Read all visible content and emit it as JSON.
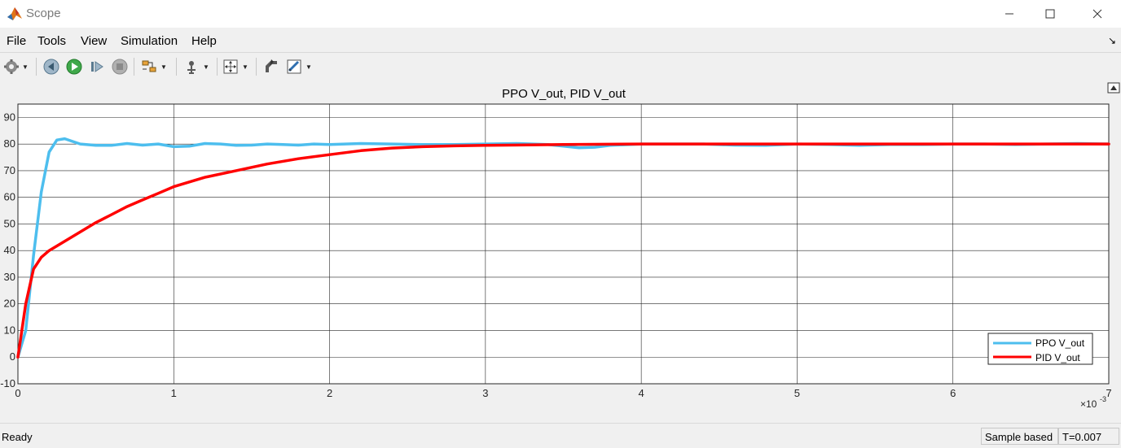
{
  "window": {
    "title": "Scope"
  },
  "menu": {
    "items": [
      "File",
      "Tools",
      "View",
      "Simulation",
      "Help"
    ]
  },
  "toolbar": {
    "buttons": [
      "settings-icon",
      "step-back-icon",
      "run-icon",
      "step-forward-icon",
      "stop-icon",
      "signal-select-icon",
      "cursor-measure-icon",
      "zoom-fit-icon",
      "highlight-block-icon",
      "tuning-icon"
    ]
  },
  "status": {
    "state": "Ready",
    "mode": "Sample based",
    "time": "T=0.007"
  },
  "colors": {
    "ppo": "#4DBEEE",
    "pid": "#FF0000",
    "axes_bg": "#ffffff"
  },
  "chart_data": {
    "type": "line",
    "title": "PPO V_out, PID V_out",
    "xlabel": "",
    "ylabel": "",
    "x_exponent_label": "×10",
    "x_exponent_value": "-3",
    "xlim": [
      0,
      7
    ],
    "ylim": [
      -10,
      95
    ],
    "xticks": [
      0,
      1,
      2,
      3,
      4,
      5,
      6,
      7
    ],
    "yticks": [
      -10,
      0,
      10,
      20,
      30,
      40,
      50,
      60,
      70,
      80,
      90
    ],
    "grid": true,
    "legend_position": "bottom-right",
    "series": [
      {
        "name": "PPO V_out",
        "color": "#4DBEEE",
        "x": [
          0,
          0.05,
          0.1,
          0.15,
          0.2,
          0.25,
          0.3,
          0.35,
          0.4,
          0.5,
          0.6,
          0.7,
          0.8,
          0.9,
          1.0,
          1.1,
          1.2,
          1.3,
          1.4,
          1.5,
          1.6,
          1.7,
          1.8,
          1.9,
          2.0,
          2.2,
          2.4,
          2.6,
          2.8,
          3.0,
          3.2,
          3.4,
          3.6,
          3.7,
          3.8,
          4.0,
          4.2,
          4.4,
          4.6,
          4.8,
          5.0,
          5.2,
          5.4,
          5.6,
          5.8,
          6.0,
          6.2,
          6.4,
          6.6,
          6.8,
          7.0
        ],
        "y": [
          0,
          10,
          38,
          62,
          77,
          81.5,
          82,
          81,
          80,
          79.5,
          79.5,
          80.2,
          79.6,
          80,
          79,
          79.2,
          80.2,
          80,
          79.5,
          79.6,
          80,
          79.8,
          79.6,
          80,
          79.8,
          80.2,
          80,
          79.8,
          79.8,
          80,
          80.2,
          79.8,
          78.6,
          78.8,
          79.5,
          80,
          80,
          80,
          79.6,
          79.5,
          80,
          79.8,
          79.5,
          79.8,
          79.8,
          80,
          80,
          79.8,
          80,
          80.2,
          80
        ]
      },
      {
        "name": "PID V_out",
        "color": "#FF0000",
        "x": [
          0,
          0.05,
          0.1,
          0.15,
          0.2,
          0.3,
          0.4,
          0.5,
          0.6,
          0.7,
          0.8,
          0.9,
          1.0,
          1.2,
          1.4,
          1.6,
          1.8,
          2.0,
          2.2,
          2.4,
          2.6,
          2.8,
          3.0,
          3.5,
          4.0,
          4.5,
          5.0,
          5.5,
          6.0,
          6.5,
          7.0
        ],
        "y": [
          0,
          20,
          33,
          37.5,
          40,
          43.5,
          47,
          50.5,
          53.5,
          56.5,
          59,
          61.5,
          64,
          67.5,
          70,
          72.5,
          74.5,
          76,
          77.5,
          78.5,
          79,
          79.3,
          79.5,
          79.8,
          80,
          80,
          80,
          80,
          80,
          80,
          80
        ]
      }
    ]
  }
}
